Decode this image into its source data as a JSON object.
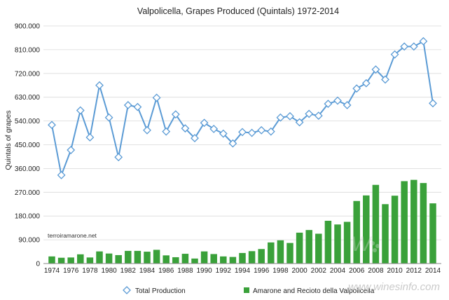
{
  "chart_data": {
    "type": "bar",
    "title": "Valpolicella, Grapes Produced (Quintals) 1972-2014",
    "ylabel": "Quintals of grapes",
    "xlabel": "",
    "ylim": [
      0,
      900000
    ],
    "y_ticks": [
      "0",
      "90.000",
      "180.000",
      "270.000",
      "360.000",
      "450.000",
      "540.000",
      "630.000",
      "720.000",
      "810.000",
      "900.000"
    ],
    "x_tick_labels": [
      "1974",
      "1976",
      "1978",
      "1980",
      "1982",
      "1984",
      "1986",
      "1988",
      "1990",
      "1992",
      "1994",
      "1996",
      "1998",
      "2000",
      "2002",
      "2004",
      "2006",
      "2008",
      "2010",
      "2012",
      "2014"
    ],
    "grid": true,
    "legend_position": "bottom",
    "categories": [
      1974,
      1975,
      1976,
      1977,
      1978,
      1979,
      1980,
      1981,
      1982,
      1983,
      1984,
      1985,
      1986,
      1987,
      1988,
      1989,
      1990,
      1991,
      1992,
      1993,
      1994,
      1995,
      1996,
      1997,
      1998,
      1999,
      2000,
      2001,
      2002,
      2003,
      2004,
      2005,
      2006,
      2007,
      2008,
      2009,
      2010,
      2011,
      2012,
      2013,
      2014
    ],
    "series": [
      {
        "name": "Total Production",
        "type": "line",
        "color": "#5b9bd5",
        "marker": "diamond",
        "values": [
          525000,
          335000,
          430000,
          580000,
          478000,
          675000,
          553000,
          403000,
          600000,
          593000,
          505000,
          628000,
          500000,
          565000,
          512000,
          475000,
          533000,
          510000,
          492000,
          455000,
          498000,
          495000,
          505000,
          500000,
          553000,
          558000,
          535000,
          567000,
          560000,
          605000,
          617000,
          600000,
          663000,
          683000,
          735000,
          697000,
          792000,
          822000,
          822000,
          842000,
          607000
        ]
      },
      {
        "name": "Amarone and Recioto della Valpolicella",
        "type": "bar",
        "color": "#3aa13a",
        "values": [
          27000,
          22000,
          23000,
          35000,
          23000,
          46000,
          38000,
          32000,
          48000,
          48000,
          45000,
          52000,
          31000,
          24000,
          37000,
          19000,
          46000,
          36000,
          27000,
          25000,
          40000,
          47000,
          55000,
          80000,
          88000,
          78000,
          117000,
          127000,
          113000,
          162000,
          148000,
          158000,
          237000,
          258000,
          298000,
          225000,
          257000,
          312000,
          317000,
          305000,
          228000
        ]
      }
    ]
  },
  "watermark_text": "terroiramarone.net",
  "site_watermark": "www.winesinfo.com"
}
